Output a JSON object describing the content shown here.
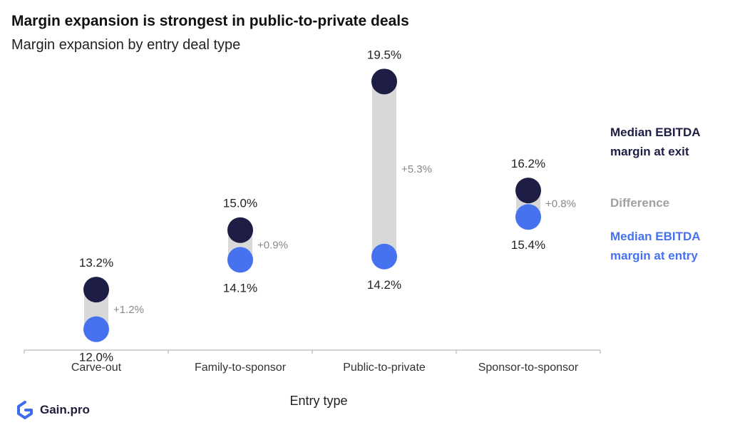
{
  "title": "Margin expansion is strongest in public-to-private deals",
  "subtitle": "Margin expansion by entry deal type",
  "legend": {
    "exit": "Median EBITDA margin at exit",
    "difference": "Difference",
    "entry": "Median EBITDA margin at entry"
  },
  "brand": "Gain.pro",
  "colors": {
    "exit": "#1e1d45",
    "entry": "#4672f0",
    "difference": "#d8d8d8",
    "difference_text": "#a0a0a0"
  },
  "chart_data": {
    "type": "dumbbell",
    "xlabel": "Entry type",
    "categories": [
      "Carve-out",
      "Family-to-sponsor",
      "Public-to-private",
      "Sponsor-to-sponsor"
    ],
    "series": [
      {
        "name": "Median EBITDA margin at exit",
        "values": [
          13.2,
          15.0,
          19.5,
          16.2
        ],
        "labels": [
          "13.2%",
          "15.0%",
          "19.5%",
          "16.2%"
        ]
      },
      {
        "name": "Median EBITDA margin at entry",
        "values": [
          12.0,
          14.1,
          14.2,
          15.4
        ],
        "labels": [
          "12.0%",
          "14.1%",
          "14.2%",
          "15.4%"
        ]
      }
    ],
    "differences": [
      "+1.2%",
      "+0.9%",
      "+5.3%",
      "+0.8%"
    ],
    "ylim": [
      11.0,
      20.5
    ],
    "grid": false,
    "legend_position": "right"
  }
}
